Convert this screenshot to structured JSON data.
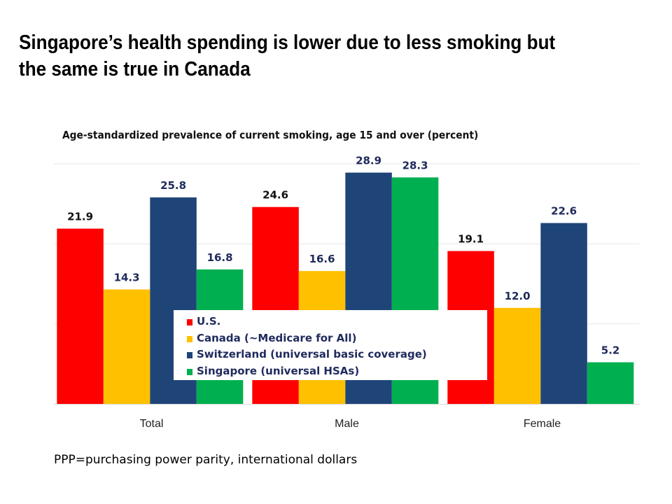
{
  "title": "Singapore’s health spending is lower due to less smoking but the same is true in Canada",
  "title_lines": [
    "Singapore’s health spending is lower due to less smoking but",
    "the same is true in Canada"
  ],
  "footnote": "PPP=purchasing power parity, international dollars",
  "chart_data": {
    "type": "bar",
    "title": "Age-standardized prevalence of current smoking, age 15 and over (percent)",
    "categories": [
      "Total",
      "Male",
      "Female"
    ],
    "series": [
      {
        "name": "U.S.",
        "color": "#ff0000",
        "values": [
          21.9,
          24.6,
          19.1
        ]
      },
      {
        "name": "Canada (~Medicare for All)",
        "color": "#ffc000",
        "values": [
          14.3,
          16.6,
          12.0
        ]
      },
      {
        "name": "Switzerland (universal basic coverage)",
        "color": "#1f4578",
        "values": [
          25.8,
          28.9,
          22.6
        ]
      },
      {
        "name": "Singapore (universal HSAs)",
        "color": "#00b050",
        "values": [
          16.8,
          28.3,
          5.2
        ]
      }
    ],
    "ylim": [
      0,
      30
    ],
    "grid": true,
    "legend_position": "bottom-center (inside plot)",
    "data_labels": true
  }
}
